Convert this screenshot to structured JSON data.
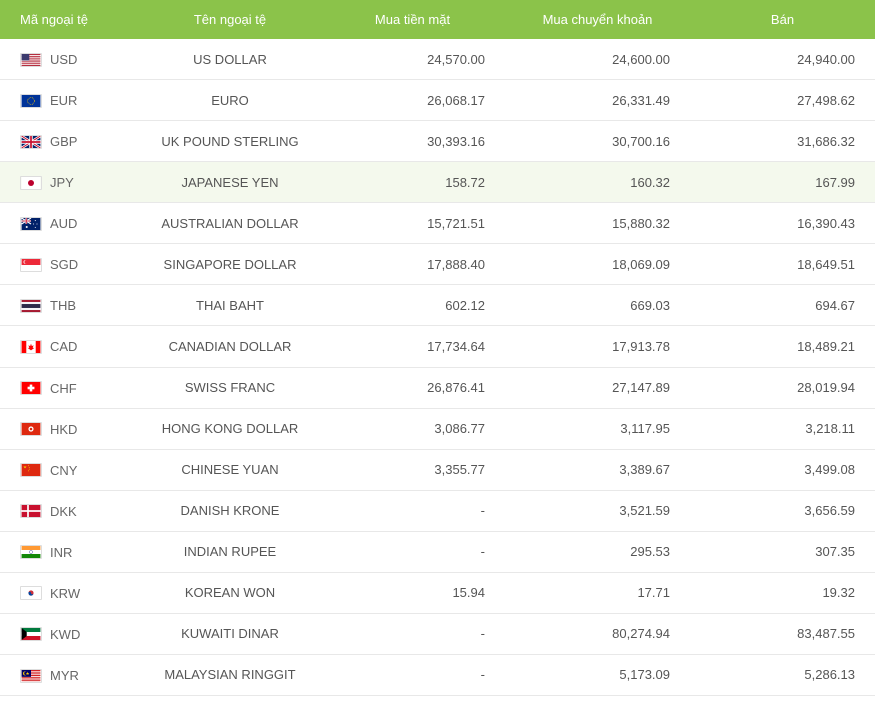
{
  "columns": [
    {
      "key": "code",
      "label": "Mã ngoại tệ"
    },
    {
      "key": "name",
      "label": "Tên ngoại tệ"
    },
    {
      "key": "cash",
      "label": "Mua tiền mặt"
    },
    {
      "key": "transfer",
      "label": "Mua chuyển khoản"
    },
    {
      "key": "sell",
      "label": "Bán"
    }
  ],
  "rows": [
    {
      "code": "USD",
      "name": "US DOLLAR",
      "cash": "24,570.00",
      "transfer": "24,600.00",
      "sell": "24,940.00",
      "highlight": false
    },
    {
      "code": "EUR",
      "name": "EURO",
      "cash": "26,068.17",
      "transfer": "26,331.49",
      "sell": "27,498.62",
      "highlight": false
    },
    {
      "code": "GBP",
      "name": "UK POUND STERLING",
      "cash": "30,393.16",
      "transfer": "30,700.16",
      "sell": "31,686.32",
      "highlight": false
    },
    {
      "code": "JPY",
      "name": "JAPANESE YEN",
      "cash": "158.72",
      "transfer": "160.32",
      "sell": "167.99",
      "highlight": true
    },
    {
      "code": "AUD",
      "name": "AUSTRALIAN DOLLAR",
      "cash": "15,721.51",
      "transfer": "15,880.32",
      "sell": "16,390.43",
      "highlight": false
    },
    {
      "code": "SGD",
      "name": "SINGAPORE DOLLAR",
      "cash": "17,888.40",
      "transfer": "18,069.09",
      "sell": "18,649.51",
      "highlight": false
    },
    {
      "code": "THB",
      "name": "THAI BAHT",
      "cash": "602.12",
      "transfer": "669.03",
      "sell": "694.67",
      "highlight": false
    },
    {
      "code": "CAD",
      "name": "CANADIAN DOLLAR",
      "cash": "17,734.64",
      "transfer": "17,913.78",
      "sell": "18,489.21",
      "highlight": false
    },
    {
      "code": "CHF",
      "name": "SWISS FRANC",
      "cash": "26,876.41",
      "transfer": "27,147.89",
      "sell": "28,019.94",
      "highlight": false
    },
    {
      "code": "HKD",
      "name": "HONG KONG DOLLAR",
      "cash": "3,086.77",
      "transfer": "3,117.95",
      "sell": "3,218.11",
      "highlight": false
    },
    {
      "code": "CNY",
      "name": "CHINESE YUAN",
      "cash": "3,355.77",
      "transfer": "3,389.67",
      "sell": "3,499.08",
      "highlight": false
    },
    {
      "code": "DKK",
      "name": "DANISH KRONE",
      "cash": "-",
      "transfer": "3,521.59",
      "sell": "3,656.59",
      "highlight": false
    },
    {
      "code": "INR",
      "name": "INDIAN RUPEE",
      "cash": "-",
      "transfer": "295.53",
      "sell": "307.35",
      "highlight": false
    },
    {
      "code": "KRW",
      "name": "KOREAN WON",
      "cash": "15.94",
      "transfer": "17.71",
      "sell": "19.32",
      "highlight": false
    },
    {
      "code": "KWD",
      "name": "KUWAITI DINAR",
      "cash": "-",
      "transfer": "80,274.94",
      "sell": "83,487.55",
      "highlight": false
    },
    {
      "code": "MYR",
      "name": "MALAYSIAN RINGGIT",
      "cash": "-",
      "transfer": "5,173.09",
      "sell": "5,286.13",
      "highlight": false
    }
  ]
}
